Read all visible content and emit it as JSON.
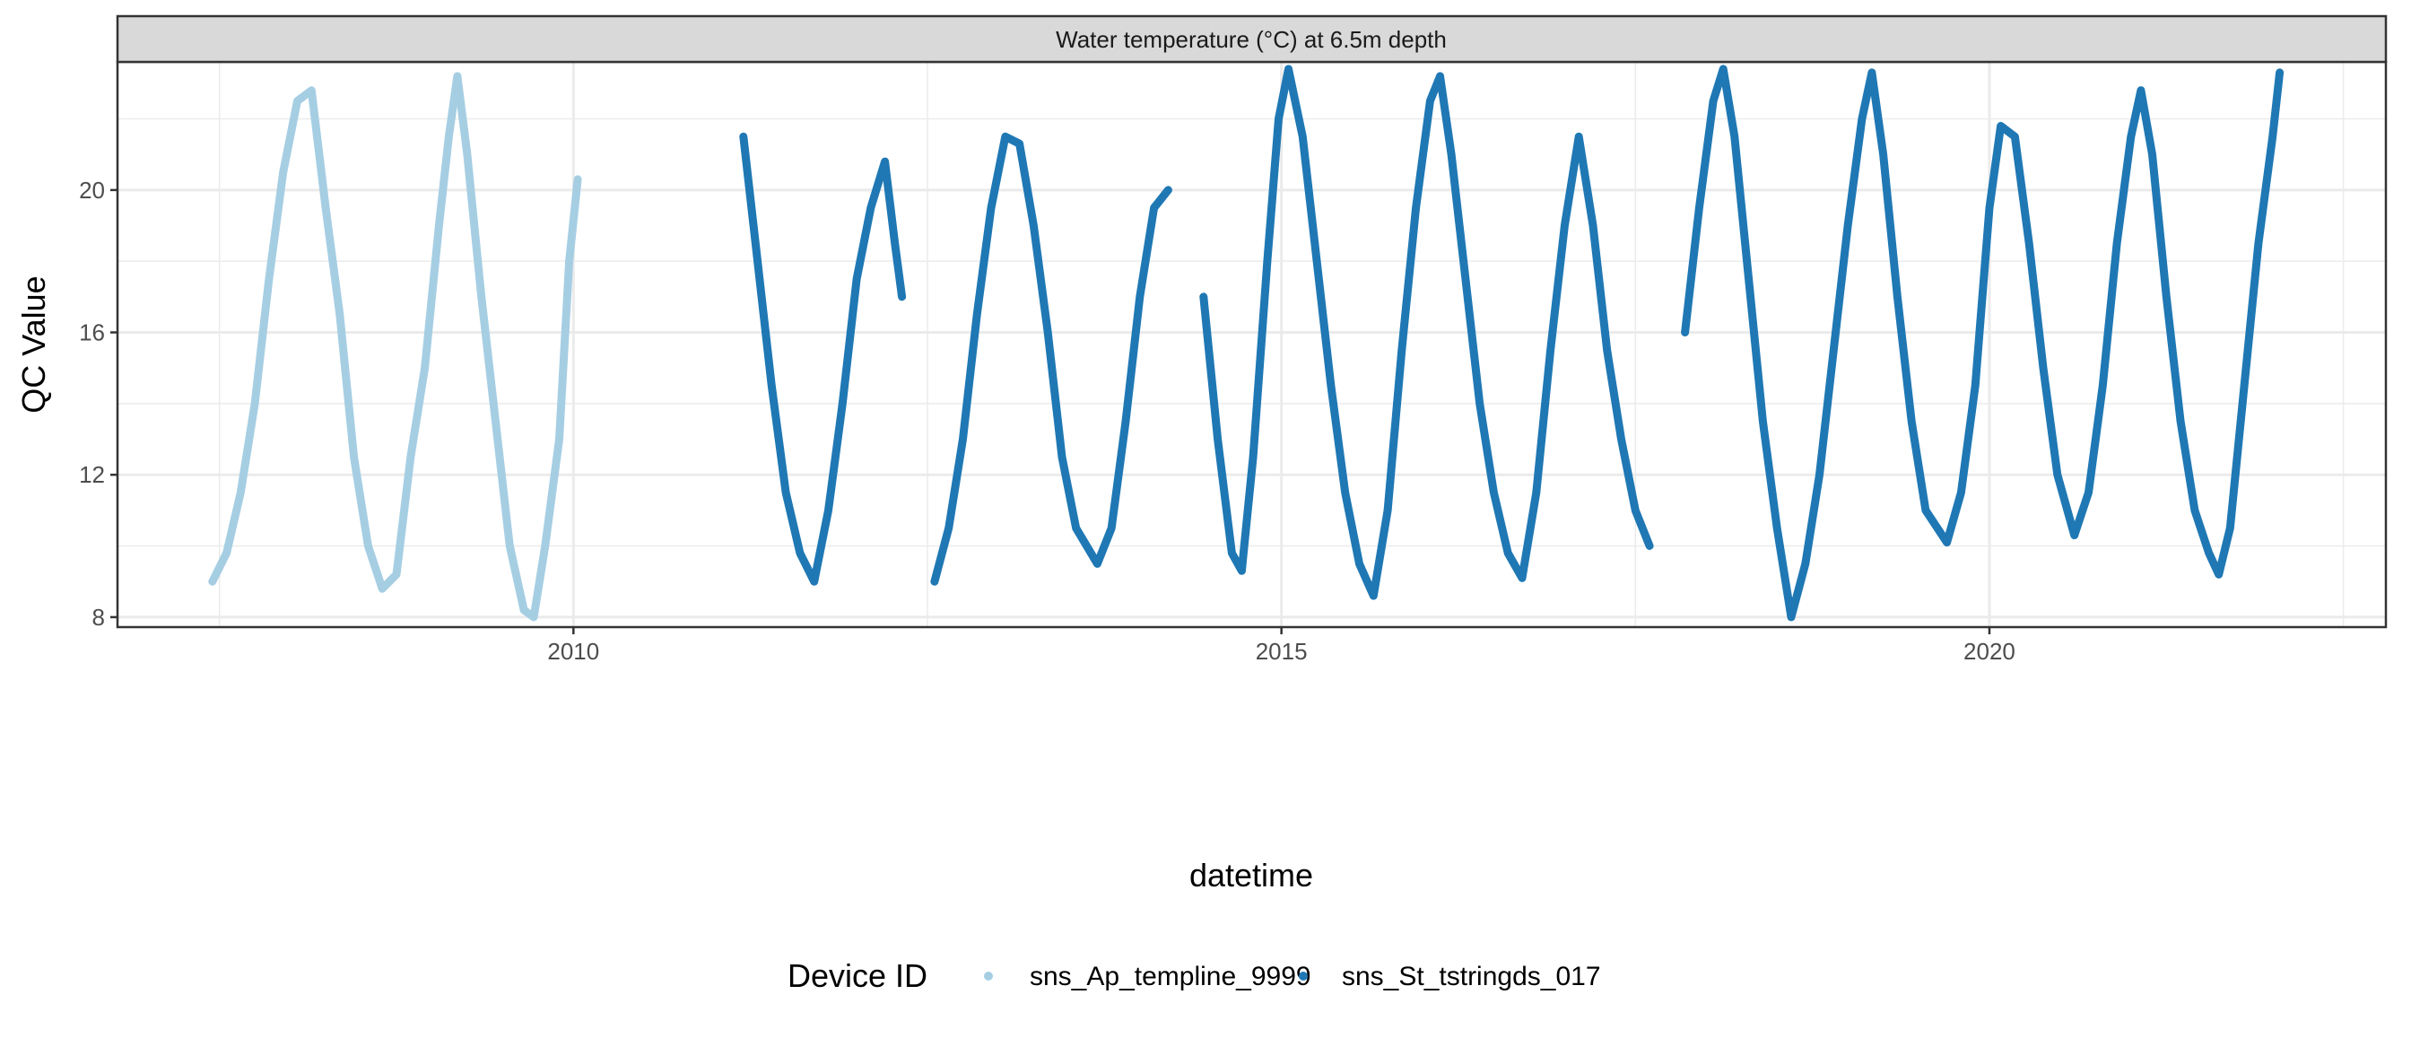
{
  "chart_data": {
    "type": "scatter",
    "strip_title": "Water temperature (°C) at 6.5m depth",
    "xlabel": "datetime",
    "ylabel": "QC Value",
    "xlim": [
      2006.78,
      2022.8
    ],
    "ylim": [
      7.72,
      23.6
    ],
    "x_ticks": [
      2010,
      2015,
      2020
    ],
    "x_tick_labels": [
      "2010",
      "2015",
      "2020"
    ],
    "y_ticks": [
      8,
      12,
      16,
      20
    ],
    "y_tick_labels": [
      "8",
      "12",
      "16",
      "20"
    ],
    "grid": true,
    "legend": {
      "title": "Device ID",
      "position": "bottom"
    },
    "series": [
      {
        "name": "sns_Ap_templine_9999",
        "color": "#A6CEE3",
        "points": [
          [
            2007.45,
            9.0
          ],
          [
            2007.55,
            9.8
          ],
          [
            2007.65,
            11.5
          ],
          [
            2007.75,
            14.0
          ],
          [
            2007.85,
            17.5
          ],
          [
            2007.95,
            20.5
          ],
          [
            2008.05,
            22.5
          ],
          [
            2008.15,
            22.8
          ],
          [
            2008.25,
            19.5
          ],
          [
            2008.35,
            16.5
          ],
          [
            2008.45,
            12.5
          ],
          [
            2008.55,
            10.0
          ],
          [
            2008.65,
            8.8
          ],
          [
            2008.75,
            9.2
          ],
          [
            2008.85,
            12.5
          ],
          [
            2008.95,
            15.0
          ],
          [
            2009.05,
            19.0
          ],
          [
            2009.12,
            21.5
          ],
          [
            2009.18,
            23.2
          ],
          [
            2009.25,
            21.0
          ],
          [
            2009.35,
            17.0
          ],
          [
            2009.45,
            13.5
          ],
          [
            2009.55,
            10.0
          ],
          [
            2009.65,
            8.2
          ],
          [
            2009.72,
            8.0
          ],
          [
            2009.8,
            10.0
          ],
          [
            2009.9,
            13.0
          ],
          [
            2009.97,
            18.0
          ],
          [
            2010.03,
            20.3
          ]
        ]
      },
      {
        "name": "sns_St_tstringds_017",
        "color": "#1F78B4",
        "points": [
          [
            2011.2,
            21.5
          ],
          [
            2011.3,
            18.0
          ],
          [
            2011.4,
            14.5
          ],
          [
            2011.5,
            11.5
          ],
          [
            2011.6,
            9.8
          ],
          [
            2011.7,
            9.0
          ],
          [
            2011.8,
            11.0
          ],
          [
            2011.9,
            14.0
          ],
          [
            2012.0,
            17.5
          ],
          [
            2012.1,
            19.5
          ],
          [
            2012.2,
            20.8
          ],
          [
            2012.27,
            18.5
          ],
          [
            2012.32,
            17.0
          ],
          null,
          [
            2012.55,
            9.0
          ],
          [
            2012.65,
            10.5
          ],
          [
            2012.75,
            13.0
          ],
          [
            2012.85,
            16.5
          ],
          [
            2012.95,
            19.5
          ],
          [
            2013.05,
            21.5
          ],
          [
            2013.15,
            21.3
          ],
          [
            2013.25,
            19.0
          ],
          [
            2013.35,
            16.0
          ],
          [
            2013.45,
            12.5
          ],
          [
            2013.55,
            10.5
          ],
          [
            2013.7,
            9.5
          ],
          [
            2013.8,
            10.5
          ],
          [
            2013.9,
            13.5
          ],
          [
            2014.0,
            17.0
          ],
          [
            2014.1,
            19.5
          ],
          [
            2014.2,
            20.0
          ],
          null,
          [
            2014.45,
            17.0
          ],
          [
            2014.55,
            13.0
          ],
          [
            2014.65,
            9.8
          ],
          [
            2014.72,
            9.3
          ],
          [
            2014.8,
            12.5
          ],
          [
            2014.9,
            18.0
          ],
          [
            2014.98,
            22.0
          ],
          [
            2015.05,
            23.4
          ],
          [
            2015.15,
            21.5
          ],
          [
            2015.25,
            18.0
          ],
          [
            2015.35,
            14.5
          ],
          [
            2015.45,
            11.5
          ],
          [
            2015.55,
            9.5
          ],
          [
            2015.65,
            8.6
          ],
          [
            2015.75,
            11.0
          ],
          [
            2015.85,
            15.5
          ],
          [
            2015.95,
            19.5
          ],
          [
            2016.05,
            22.5
          ],
          [
            2016.12,
            23.2
          ],
          [
            2016.2,
            21.0
          ],
          [
            2016.3,
            17.5
          ],
          [
            2016.4,
            14.0
          ],
          [
            2016.5,
            11.5
          ],
          [
            2016.6,
            9.8
          ],
          [
            2016.7,
            9.1
          ],
          [
            2016.8,
            11.5
          ],
          [
            2016.9,
            15.5
          ],
          [
            2017.0,
            19.0
          ],
          [
            2017.1,
            21.5
          ],
          [
            2017.2,
            19.0
          ],
          [
            2017.3,
            15.5
          ],
          [
            2017.4,
            13.0
          ],
          [
            2017.5,
            11.0
          ],
          [
            2017.6,
            10.0
          ],
          null,
          [
            2017.85,
            16.0
          ],
          [
            2017.95,
            19.5
          ],
          [
            2018.05,
            22.5
          ],
          [
            2018.12,
            23.4
          ],
          [
            2018.2,
            21.5
          ],
          [
            2018.3,
            17.5
          ],
          [
            2018.4,
            13.5
          ],
          [
            2018.5,
            10.5
          ],
          [
            2018.6,
            8.0
          ],
          [
            2018.7,
            9.5
          ],
          [
            2018.8,
            12.0
          ],
          [
            2018.9,
            15.5
          ],
          [
            2019.0,
            19.0
          ],
          [
            2019.1,
            22.0
          ],
          [
            2019.17,
            23.3
          ],
          [
            2019.25,
            21.0
          ],
          [
            2019.35,
            17.0
          ],
          [
            2019.45,
            13.5
          ],
          [
            2019.55,
            11.0
          ],
          [
            2019.7,
            10.1
          ],
          [
            2019.8,
            11.5
          ],
          [
            2019.9,
            14.5
          ],
          [
            2020.0,
            19.5
          ],
          [
            2020.08,
            21.8
          ],
          [
            2020.18,
            21.5
          ],
          [
            2020.28,
            18.5
          ],
          [
            2020.38,
            15.0
          ],
          [
            2020.48,
            12.0
          ],
          [
            2020.6,
            10.3
          ],
          [
            2020.7,
            11.5
          ],
          [
            2020.8,
            14.5
          ],
          [
            2020.9,
            18.5
          ],
          [
            2021.0,
            21.5
          ],
          [
            2021.07,
            22.8
          ],
          [
            2021.15,
            21.0
          ],
          [
            2021.25,
            17.0
          ],
          [
            2021.35,
            13.5
          ],
          [
            2021.45,
            11.0
          ],
          [
            2021.55,
            9.8
          ],
          [
            2021.62,
            9.2
          ],
          [
            2021.7,
            10.5
          ],
          [
            2021.8,
            14.5
          ],
          [
            2021.9,
            18.5
          ],
          [
            2022.0,
            21.5
          ],
          [
            2022.05,
            23.3
          ]
        ]
      }
    ]
  }
}
